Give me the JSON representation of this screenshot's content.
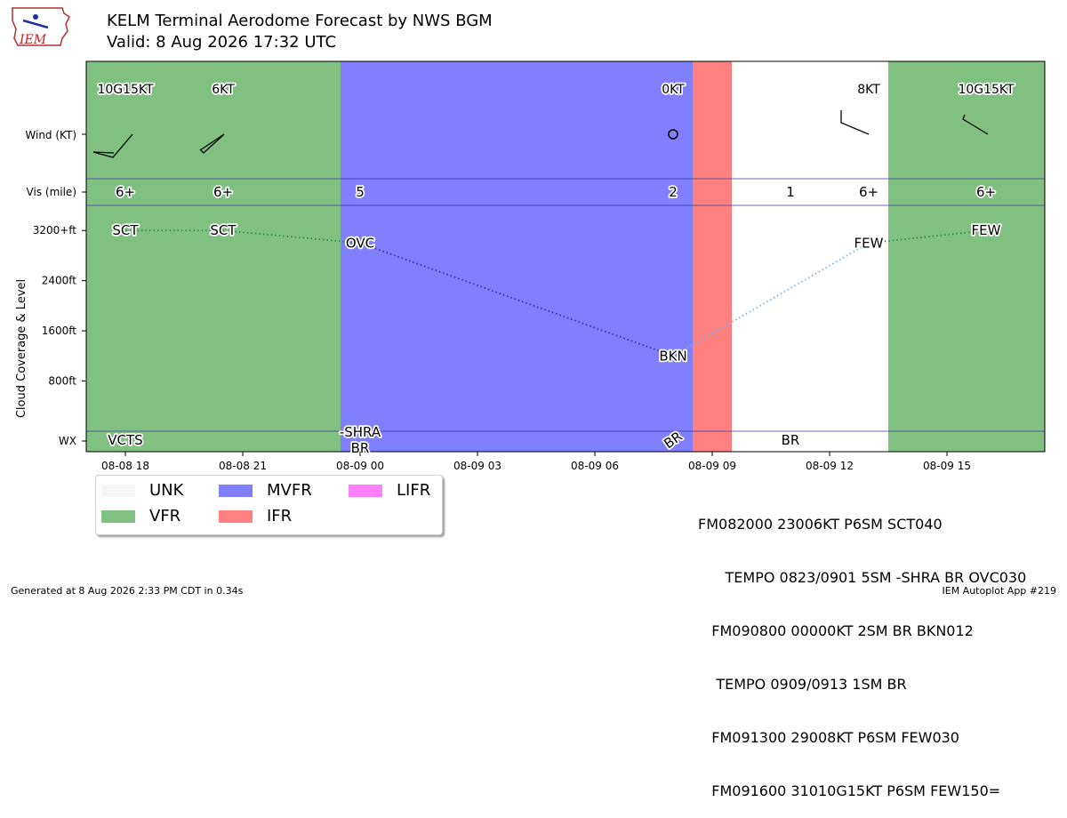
{
  "header": {
    "title": "KELM Terminal Aerodome Forecast by NWS BGM",
    "valid": "Valid: 8 Aug 2026 17:32 UTC",
    "logo_text": "IEM"
  },
  "colors": {
    "VFR": "#80c080",
    "MVFR": "#8080ff",
    "IFR": "#ff8080",
    "LIFR": "#ff80ff",
    "UNK": "#f5f5f5"
  },
  "chart_data": {
    "type": "timeline",
    "x_start": "08-08 17:00",
    "x_end": "08-09 17:30",
    "x_ticks": [
      "08-08 18",
      "08-08 21",
      "08-09 00",
      "08-09 03",
      "08-09 06",
      "08-09 09",
      "08-09 12",
      "08-09 15"
    ],
    "row_labels": {
      "wind": "Wind (KT)",
      "vis": "Vis (mile)",
      "wx": "WX"
    },
    "ylabel": "Cloud Coverage & Level",
    "ylim_ft": [
      0,
      3600
    ],
    "y_ticks": [
      "800ft",
      "1600ft",
      "2400ft",
      "3200+ft"
    ],
    "y_tick_values": [
      800,
      1600,
      2400,
      3200
    ],
    "categories": [
      {
        "start": "08-08 17:00",
        "end": "08-08 23:30",
        "cat": "VFR"
      },
      {
        "start": "08-08 23:30",
        "end": "08-09 08:30",
        "cat": "MVFR"
      },
      {
        "start": "08-09 08:30",
        "end": "08-09 09:30",
        "cat": "IFR"
      },
      {
        "start": "08-09 09:30",
        "end": "08-09 13:30",
        "cat": "UNK_WHITE"
      },
      {
        "start": "08-09 13:30",
        "end": "08-09 17:30",
        "cat": "VFR"
      }
    ],
    "wind": [
      {
        "time": "08-08 18:00",
        "label": "10G15KT",
        "dir": 230
      },
      {
        "time": "08-08 20:30",
        "label": "6KT",
        "dir": 230
      },
      {
        "time": "08-09 08:00",
        "label": "0KT",
        "dir": 0
      },
      {
        "time": "08-09 13:00",
        "label": "8KT",
        "dir": 290
      },
      {
        "time": "08-09 16:00",
        "label": "10G15KT",
        "dir": 310
      }
    ],
    "vis": [
      {
        "time": "08-08 18:00",
        "label": "6+"
      },
      {
        "time": "08-08 20:30",
        "label": "6+"
      },
      {
        "time": "08-09 00:00",
        "label": "5"
      },
      {
        "time": "08-09 08:00",
        "label": "2"
      },
      {
        "time": "08-09 11:00",
        "label": "1"
      },
      {
        "time": "08-09 13:00",
        "label": "6+"
      },
      {
        "time": "08-09 16:00",
        "label": "6+"
      }
    ],
    "clouds": [
      {
        "time": "08-08 18:00",
        "label": "SCT",
        "ft": 3200
      },
      {
        "time": "08-08 20:30",
        "label": "SCT",
        "ft": 3200
      },
      {
        "time": "08-09 00:00",
        "label": "OVC",
        "ft": 3000
      },
      {
        "time": "08-09 08:00",
        "label": "BKN",
        "ft": 1200
      },
      {
        "time": "08-09 13:00",
        "label": "FEW",
        "ft": 3000
      },
      {
        "time": "08-09 16:00",
        "label": "FEW",
        "ft": 3200
      }
    ],
    "cloud_segments": [
      {
        "from": 0,
        "to": 1,
        "color": "#2e8b57"
      },
      {
        "from": 1,
        "to": 2,
        "color": "#2e8b57"
      },
      {
        "from": 2,
        "to": 3,
        "color": "#3030c0"
      },
      {
        "from": 3,
        "to": 4,
        "color": "#7fb2e0"
      },
      {
        "from": 4,
        "to": 5,
        "color": "#2e8b57"
      }
    ],
    "wx": [
      {
        "time": "08-08 18:00",
        "label": "VCTS",
        "rotate": 0
      },
      {
        "time": "08-09 00:00",
        "label": "-SHRA",
        "rotate": 0,
        "second": "BR"
      },
      {
        "time": "08-09 08:00",
        "label": "BR",
        "rotate": -35
      },
      {
        "time": "08-09 11:00",
        "label": "BR",
        "rotate": 0
      }
    ]
  },
  "legend": [
    {
      "label": "UNK",
      "cat": "UNK"
    },
    {
      "label": "VFR",
      "cat": "VFR"
    },
    {
      "label": "MVFR",
      "cat": "MVFR"
    },
    {
      "label": "IFR",
      "cat": "IFR"
    },
    {
      "label": "LIFR",
      "cat": "LIFR"
    }
  ],
  "taf_lines": [
    "FM082000 23006KT P6SM SCT040",
    "      TEMPO 0823/0901 5SM -SHRA BR OVC030",
    "   FM090800 00000KT 2SM BR BKN012",
    "    TEMPO 0909/0913 1SM BR",
    "   FM091300 29008KT P6SM FEW030",
    "   FM091600 31010G15KT P6SM FEW150="
  ],
  "footer": {
    "generated": "Generated at 8 Aug 2026 2:33 PM CDT in 0.34s",
    "app": "IEM Autoplot App #219"
  }
}
